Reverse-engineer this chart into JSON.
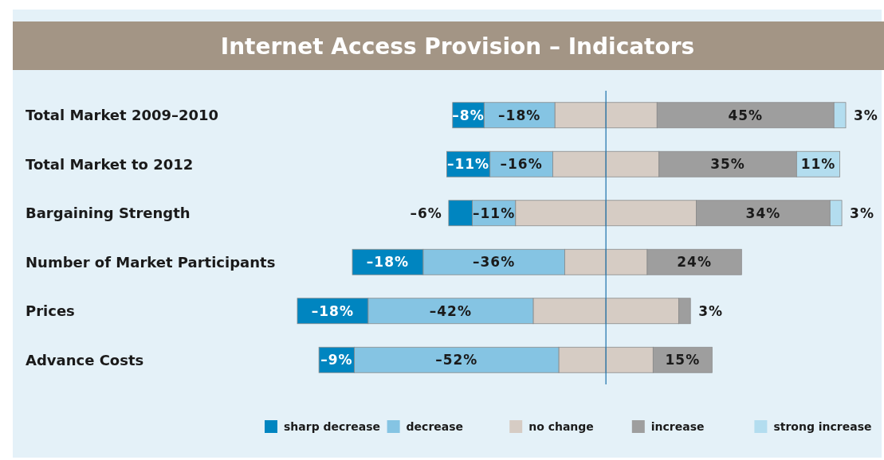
{
  "chart_data": {
    "type": "bar",
    "title": "Internet Access Provision – Indicators",
    "orientation": "horizontal",
    "stacked": true,
    "categories": [
      "Total Market 2009–2010",
      "Total Market to 2012",
      "Bargaining Strength",
      "Number of Market Participants",
      "Prices",
      "Advance Costs"
    ],
    "series": [
      {
        "name": "no change",
        "color": "#d6ccc4",
        "values": [
          -13,
          -13.5,
          -23,
          -10.5,
          -18.5,
          -12
        ]
      },
      {
        "name": "decrease",
        "color": "#85c4e3",
        "values": [
          -18,
          -16,
          -11,
          -36,
          -42,
          -52
        ],
        "value_labels": [
          "–18%",
          "–16%",
          "–11%",
          "–36%",
          "–42%",
          "–52%"
        ]
      },
      {
        "name": "sharp decrease",
        "color": "#0085c0",
        "values": [
          -8,
          -11,
          -6,
          -18,
          -18,
          -9
        ],
        "value_labels": [
          "–8%",
          "–11%",
          "–6%",
          "–18%",
          "–18%",
          "–9%"
        ]
      },
      {
        "color": "#d6ccc4",
        "values": [
          13,
          13.5,
          23,
          10.5,
          18.5,
          12
        ]
      },
      {
        "name": "increase",
        "color": "#9e9e9e",
        "values": [
          45,
          35,
          34,
          24,
          3,
          15
        ],
        "value_labels": [
          "45%",
          "35%",
          "34%",
          "24%",
          "3%",
          "15%"
        ]
      },
      {
        "name": "strong increase",
        "color": "#b3ddef",
        "values": [
          3,
          11,
          3,
          null,
          null,
          null
        ],
        "value_labels": [
          "3%",
          "11%",
          "3%",
          null,
          null,
          null
        ]
      }
    ],
    "xlim": [
      -78.5,
      61
    ],
    "ref_lines": [
      {
        "axis": "x",
        "value": 0,
        "color": "#2a7ab0"
      }
    ],
    "legend": "bottom"
  }
}
